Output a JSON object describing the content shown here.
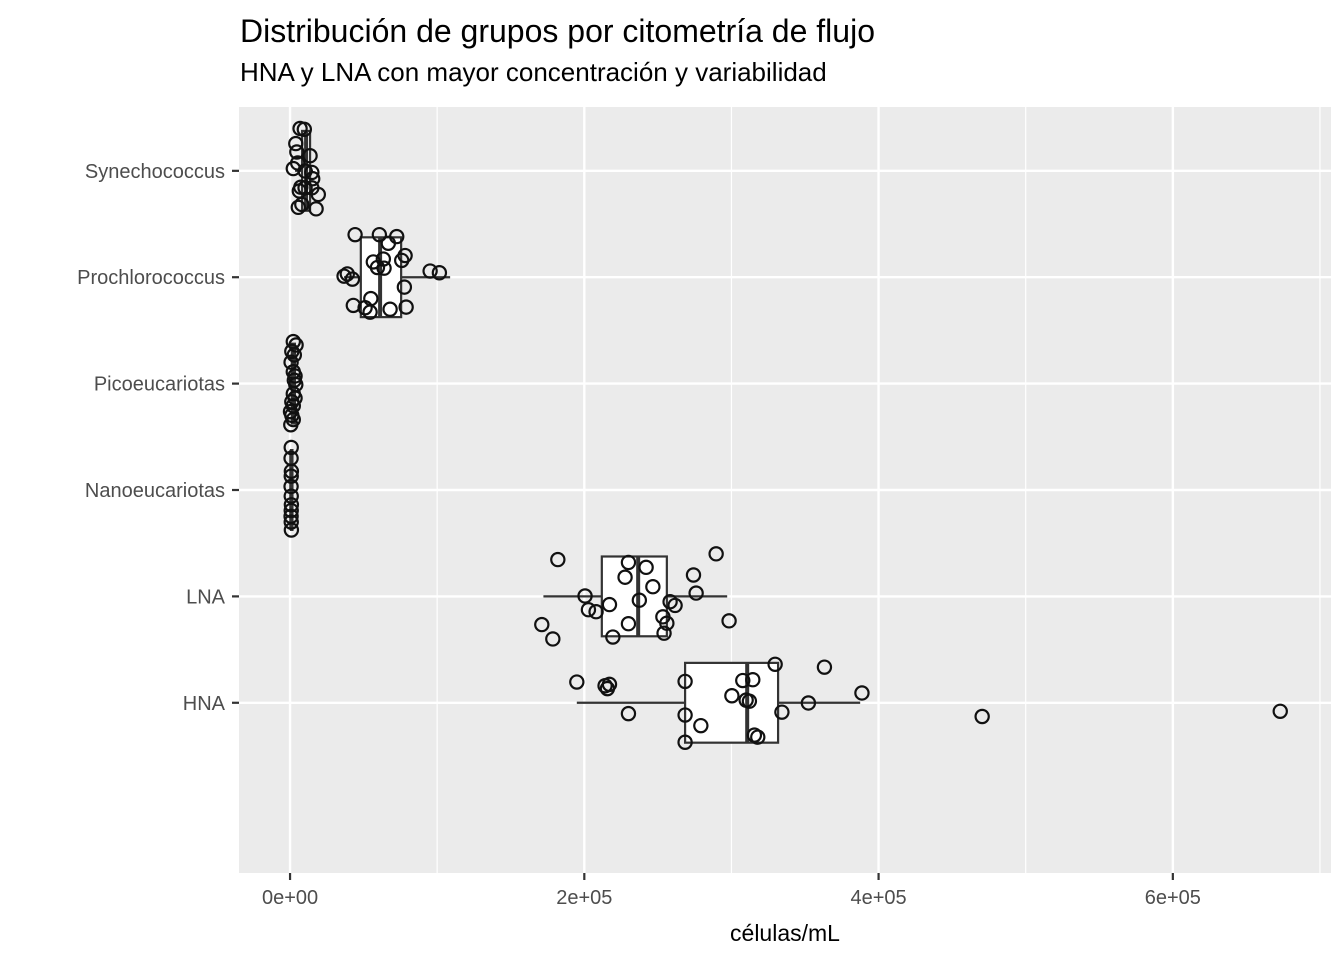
{
  "chart_data": {
    "type": "boxplot",
    "orientation": "horizontal",
    "overlay": "jittered points",
    "title": "Distribución de grupos por citometría de flujo",
    "subtitle": "HNA y LNA con mayor concentración y variabilidad",
    "xlabel": "células/mL",
    "ylabel": "",
    "legend": "none",
    "grid": "on",
    "x_axis": {
      "lim": [
        -34700,
        707500
      ],
      "major_ticks": [
        {
          "value": 0,
          "label": "0e+00"
        },
        {
          "value": 200000,
          "label": "2e+05"
        },
        {
          "value": 400000,
          "label": "4e+05"
        },
        {
          "value": 600000,
          "label": "6e+05"
        }
      ],
      "minor_gridlines": [
        100000,
        300000,
        500000,
        700000
      ]
    },
    "groups": [
      {
        "label": "Synechococcus",
        "slug": "synechococcus",
        "stats": {
          "whisker_low": 3400,
          "q1": 8200,
          "median": 10900,
          "q3": 13600,
          "whisker_high": 15600
        },
        "points": [
          [
            6800,
            -0.398
          ],
          [
            9700,
            -0.39
          ],
          [
            3900,
            -0.256
          ],
          [
            4600,
            -0.177
          ],
          [
            13600,
            -0.142
          ],
          [
            5200,
            -0.074
          ],
          [
            2200,
            -0.021
          ],
          [
            10200,
            0.001
          ],
          [
            14800,
            0.015
          ],
          [
            15400,
            0.074
          ],
          [
            7300,
            0.154
          ],
          [
            10200,
            0.16
          ],
          [
            14800,
            0.16
          ],
          [
            6300,
            0.189
          ],
          [
            19200,
            0.222
          ],
          [
            8000,
            0.316
          ],
          [
            5600,
            0.343
          ],
          [
            17700,
            0.357
          ]
        ]
      },
      {
        "label": "Prochlorococcus",
        "slug": "prochlorococcus",
        "stats": {
          "whisker_low": 36700,
          "q1": 48100,
          "median": 61200,
          "q3": 75500,
          "whisker_high": 108800
        },
        "points": [
          [
            44200,
            -0.4
          ],
          [
            60700,
            -0.4
          ],
          [
            72500,
            -0.382
          ],
          [
            66800,
            -0.319
          ],
          [
            78200,
            -0.204
          ],
          [
            75900,
            -0.158
          ],
          [
            63400,
            -0.171
          ],
          [
            56600,
            -0.144
          ],
          [
            59400,
            -0.091
          ],
          [
            63900,
            -0.085
          ],
          [
            95200,
            -0.058
          ],
          [
            101500,
            -0.042
          ],
          [
            38900,
            -0.031
          ],
          [
            36700,
            -0.01
          ],
          [
            42400,
            0.018
          ],
          [
            77700,
            0.093
          ],
          [
            54900,
            0.201
          ],
          [
            43000,
            0.265
          ],
          [
            51000,
            0.287
          ],
          [
            68000,
            0.301
          ],
          [
            78900,
            0.281
          ],
          [
            54400,
            0.328
          ]
        ]
      },
      {
        "label": "Picoeucariotas",
        "slug": "picoeucariotas",
        "stats": {
          "whisker_low": 300,
          "q1": 1200,
          "median": 2200,
          "q3": 3300,
          "whisker_high": 4100
        },
        "points": [
          [
            2200,
            -0.395
          ],
          [
            4100,
            -0.363
          ],
          [
            1200,
            -0.303
          ],
          [
            2900,
            -0.269
          ],
          [
            700,
            -0.201
          ],
          [
            2200,
            -0.112
          ],
          [
            3400,
            -0.072
          ],
          [
            2900,
            -0.032
          ],
          [
            3900,
            0.009
          ],
          [
            2200,
            0.095
          ],
          [
            3400,
            0.136
          ],
          [
            1200,
            0.171
          ],
          [
            2200,
            0.209
          ],
          [
            300,
            0.263
          ],
          [
            1200,
            0.298
          ],
          [
            2200,
            0.338
          ],
          [
            500,
            0.387
          ]
        ]
      },
      {
        "label": "Nanoeucariotas",
        "slug": "nanoeucariotas",
        "stats": {
          "whisker_low": 400,
          "q1": 600,
          "median": 800,
          "q3": 1000,
          "whisker_high": 1200
        },
        "points": [
          [
            800,
            -0.4
          ],
          [
            700,
            -0.298
          ],
          [
            900,
            -0.176
          ],
          [
            800,
            -0.13
          ],
          [
            700,
            -0.033
          ],
          [
            800,
            0.058
          ],
          [
            900,
            0.139
          ],
          [
            800,
            0.193
          ],
          [
            700,
            0.247
          ],
          [
            800,
            0.301
          ],
          [
            900,
            0.376
          ]
        ]
      },
      {
        "label": "LNA",
        "slug": "lna",
        "stats": {
          "whisker_low": 172200,
          "q1": 211900,
          "median": 236600,
          "q3": 256100,
          "whisker_high": 297100
        },
        "points": [
          [
            182000,
            -0.346
          ],
          [
            289600,
            -0.4
          ],
          [
            230000,
            -0.319
          ],
          [
            242000,
            -0.273
          ],
          [
            274200,
            -0.201
          ],
          [
            227700,
            -0.18
          ],
          [
            246600,
            -0.091
          ],
          [
            276000,
            -0.031
          ],
          [
            200500,
            -0.004
          ],
          [
            237400,
            0.036
          ],
          [
            258300,
            0.05
          ],
          [
            217100,
            0.077
          ],
          [
            261700,
            0.085
          ],
          [
            202800,
            0.125
          ],
          [
            208000,
            0.144
          ],
          [
            253400,
            0.192
          ],
          [
            298400,
            0.23
          ],
          [
            256100,
            0.252
          ],
          [
            230000,
            0.257
          ],
          [
            171100,
            0.265
          ],
          [
            254200,
            0.346
          ],
          [
            219400,
            0.382
          ],
          [
            178600,
            0.4
          ]
        ]
      },
      {
        "label": "HNA",
        "slug": "hna",
        "stats": {
          "whisker_low": 194900,
          "q1": 268500,
          "median": 310700,
          "q3": 331700,
          "whisker_high": 387500
        },
        "points": [
          [
            194900,
            -0.195
          ],
          [
            214100,
            -0.16
          ],
          [
            217100,
            -0.173
          ],
          [
            215700,
            -0.133
          ],
          [
            230000,
            0.102
          ],
          [
            268500,
            -0.201
          ],
          [
            268500,
            0.115
          ],
          [
            279200,
            0.215
          ],
          [
            268500,
            0.371
          ],
          [
            300300,
            -0.066
          ],
          [
            307700,
            -0.209
          ],
          [
            314500,
            -0.217
          ],
          [
            310000,
            -0.025
          ],
          [
            312200,
            -0.015
          ],
          [
            329700,
            -0.362
          ],
          [
            315600,
            0.304
          ],
          [
            317900,
            0.323
          ],
          [
            334300,
            0.088
          ],
          [
            352300,
            0.002
          ],
          [
            363200,
            -0.335
          ],
          [
            388700,
            -0.092
          ],
          [
            470400,
            0.129
          ],
          [
            673000,
            0.08
          ]
        ]
      }
    ],
    "colors": {
      "panel_bg": "#EBEBEB",
      "grid": "#FFFFFF",
      "box_stroke": "#333333",
      "box_fill": "#FFFFFF",
      "point_stroke": "#111111",
      "axis_text": "#4D4D4D",
      "tick_mark": "#333333",
      "title_text": "#000000"
    }
  }
}
